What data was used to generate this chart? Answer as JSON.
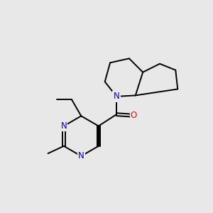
{
  "bg_color": "#e8e8e8",
  "bond_color": "#000000",
  "n_color": "#0000cc",
  "o_color": "#ff0000",
  "font_size_atom": 8.5,
  "line_width": 1.4,
  "xlim": [
    0,
    10
  ],
  "ylim": [
    0,
    10
  ]
}
